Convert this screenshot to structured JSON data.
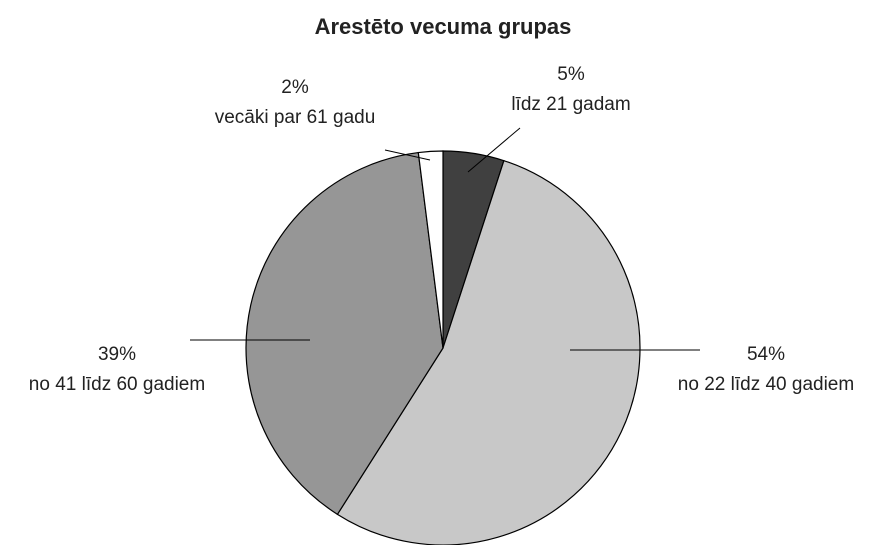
{
  "chart_data": {
    "type": "pie",
    "title": "Arestēto vecuma grupas",
    "categories": [
      "līdz 21 gadam",
      "no 22 līdz 40 gadiem",
      "no 41 līdz 60 gadiem",
      "vecāki par 61 gadu"
    ],
    "values": [
      5,
      54,
      39,
      2
    ],
    "value_labels": [
      "5%",
      "54%",
      "39%",
      "2%"
    ],
    "colors": [
      "#404040",
      "#c8c8c8",
      "#969696",
      "#ffffff"
    ]
  }
}
